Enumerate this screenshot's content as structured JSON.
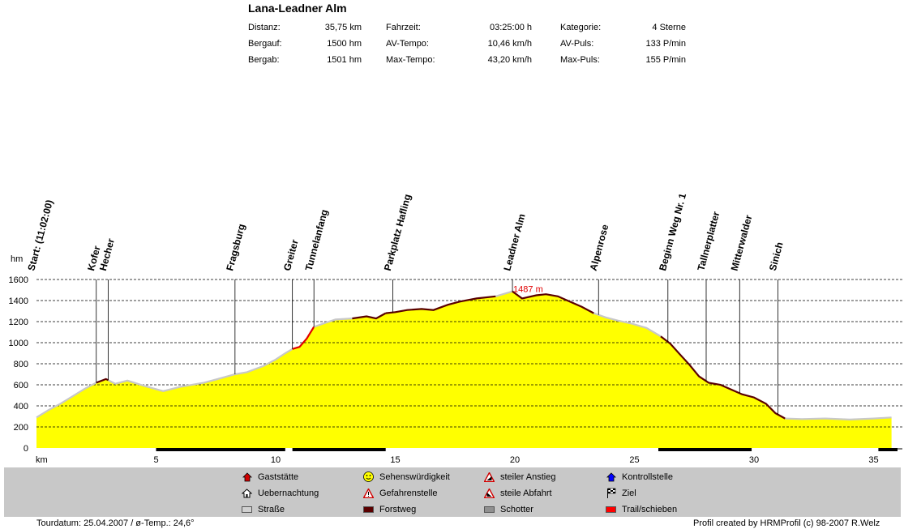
{
  "header": {
    "title": "Lana-Leadner Alm",
    "stats": [
      {
        "label": "Distanz:",
        "value": "35,75 km"
      },
      {
        "label": "Bergauf:",
        "value": "1500 hm"
      },
      {
        "label": "Bergab:",
        "value": "1501 hm"
      },
      {
        "label": "Fahrzeit:",
        "value": "03:25:00 h"
      },
      {
        "label": "AV-Tempo:",
        "value": "10,46 km/h"
      },
      {
        "label": "Max-Tempo:",
        "value": "43,20 km/h"
      },
      {
        "label": "Kategorie:",
        "value": "4 Sterne"
      },
      {
        "label": "AV-Puls:",
        "value": "133 P/min"
      },
      {
        "label": "Max-Puls:",
        "value": "155 P/min"
      }
    ]
  },
  "chart_data": {
    "type": "area",
    "ylabel": "hm",
    "xlabel": "km",
    "ylim": [
      0,
      1600
    ],
    "xlim": [
      0,
      36
    ],
    "yticks": [
      "0",
      "200",
      "400",
      "600",
      "800",
      "1000",
      "1200",
      "1400",
      "1600"
    ],
    "xticks": [
      "km",
      "5",
      "10",
      "15",
      "20",
      "25",
      "30",
      "35"
    ],
    "grid": "horizontal-dashed",
    "fill_color": "#ffff00",
    "max_label": "1487 m",
    "max_point": {
      "x": 19.9,
      "y": 1487
    },
    "profile": {
      "x": [
        0,
        0.5,
        1,
        1.5,
        2,
        2.5,
        2.9,
        3.3,
        3.8,
        4.5,
        5.3,
        6,
        7,
        7.5,
        8.3,
        8.8,
        9.5,
        10,
        10.4,
        10.7,
        11.0,
        11.3,
        11.6,
        12.1,
        12.5,
        13.2,
        13.8,
        14.2,
        14.6,
        15.0,
        15.5,
        16.1,
        16.6,
        17.2,
        17.7,
        18.4,
        19.2,
        19.9,
        20.3,
        20.9,
        21.3,
        21.8,
        22.2,
        22.8,
        23.3,
        23.8,
        24.3,
        24.9,
        25.5,
        26.1,
        26.5,
        26.9,
        27.3,
        27.7,
        28.1,
        28.6,
        29.0,
        29.5,
        30.0,
        30.5,
        30.9,
        31.3,
        32,
        33,
        34,
        35,
        35.75
      ],
      "y": [
        290,
        360,
        420,
        490,
        560,
        620,
        655,
        610,
        640,
        590,
        540,
        580,
        620,
        650,
        700,
        720,
        780,
        840,
        900,
        940,
        960,
        1040,
        1150,
        1190,
        1220,
        1230,
        1250,
        1230,
        1280,
        1290,
        1310,
        1320,
        1310,
        1360,
        1390,
        1420,
        1440,
        1487,
        1420,
        1450,
        1460,
        1440,
        1400,
        1340,
        1280,
        1240,
        1210,
        1180,
        1140,
        1060,
        990,
        890,
        790,
        680,
        620,
        600,
        560,
        510,
        480,
        420,
        330,
        280,
        275,
        280,
        270,
        280,
        290
      ]
    },
    "surface_segments": [
      {
        "from": 0,
        "to": 2.5,
        "type": "Straße"
      },
      {
        "from": 2.5,
        "to": 3.0,
        "type": "Forstweg"
      },
      {
        "from": 3.0,
        "to": 10.7,
        "type": "Straße"
      },
      {
        "from": 10.7,
        "to": 11.6,
        "type": "Trail/schieben"
      },
      {
        "from": 11.6,
        "to": 13.2,
        "type": "Straße"
      },
      {
        "from": 13.2,
        "to": 14.6,
        "type": "Forstweg"
      },
      {
        "from": 14.6,
        "to": 19.2,
        "type": "Forstweg"
      },
      {
        "from": 19.2,
        "to": 19.9,
        "type": "Straße"
      },
      {
        "from": 19.9,
        "to": 23.3,
        "type": "Forstweg"
      },
      {
        "from": 23.3,
        "to": 26.1,
        "type": "Straße"
      },
      {
        "from": 26.1,
        "to": 31.3,
        "type": "Forstweg"
      },
      {
        "from": 31.3,
        "to": 35.75,
        "type": "Straße"
      }
    ],
    "waypoints": [
      {
        "x": 0.0,
        "label": "Start: (11:02:00)",
        "height": 0
      },
      {
        "x": 2.5,
        "label": "Kofer",
        "height": 620
      },
      {
        "x": 3.0,
        "label": "Hecher",
        "height": 650
      },
      {
        "x": 8.3,
        "label": "Fragsburg",
        "height": 700
      },
      {
        "x": 10.7,
        "label": "Greiter",
        "height": 950
      },
      {
        "x": 11.6,
        "label": "Tunnelanfang",
        "height": 1150
      },
      {
        "x": 14.9,
        "label": "Parkplatz Hafling",
        "height": 1290
      },
      {
        "x": 19.9,
        "label": "Leadner Alm",
        "height": 1487
      },
      {
        "x": 23.5,
        "label": "Alpenrose",
        "height": 1270
      },
      {
        "x": 26.4,
        "label": "Beginn Weg Nr. 1",
        "height": 1040
      },
      {
        "x": 28.0,
        "label": "Tallnerplatter",
        "height": 640
      },
      {
        "x": 29.4,
        "label": "Mitterwalder",
        "height": 520
      },
      {
        "x": 31.0,
        "label": "Sinich",
        "height": 290
      }
    ]
  },
  "legend": {
    "items": [
      {
        "label": "Gaststätte",
        "icon": "house-red-icon",
        "color": "#ff0000"
      },
      {
        "label": "Uebernachtung",
        "icon": "house-outline-icon",
        "color": "#000000"
      },
      {
        "label": "Straße",
        "icon": "road-swatch",
        "color": "#d0d0d0"
      },
      {
        "label": "Sehenswürdigkeit",
        "icon": "smiley-icon",
        "color": "#ffff00"
      },
      {
        "label": "Gefahrenstelle",
        "icon": "warning-icon",
        "color": "#ff0000"
      },
      {
        "label": "Forstweg",
        "icon": "forest-swatch",
        "color": "#5a0000"
      },
      {
        "label": "steiler Anstieg",
        "icon": "steep-up-icon",
        "color": "#ff0000"
      },
      {
        "label": "steile Abfahrt",
        "icon": "steep-down-icon",
        "color": "#ff0000"
      },
      {
        "label": "Schotter",
        "icon": "gravel-swatch",
        "color": "#909090"
      },
      {
        "label": "Kontrollstelle",
        "icon": "house-blue-icon",
        "color": "#0000ff"
      },
      {
        "label": "Ziel",
        "icon": "flag-icon",
        "color": "#000000"
      },
      {
        "label": "Trail/schieben",
        "icon": "trail-swatch",
        "color": "#ff0000"
      }
    ]
  },
  "footer": {
    "left": "Tourdatum: 25.04.2007  /  ø-Temp.: 24,6°",
    "right": "Profil created by HRMProfil (c) 98-2007 R.Welz"
  }
}
